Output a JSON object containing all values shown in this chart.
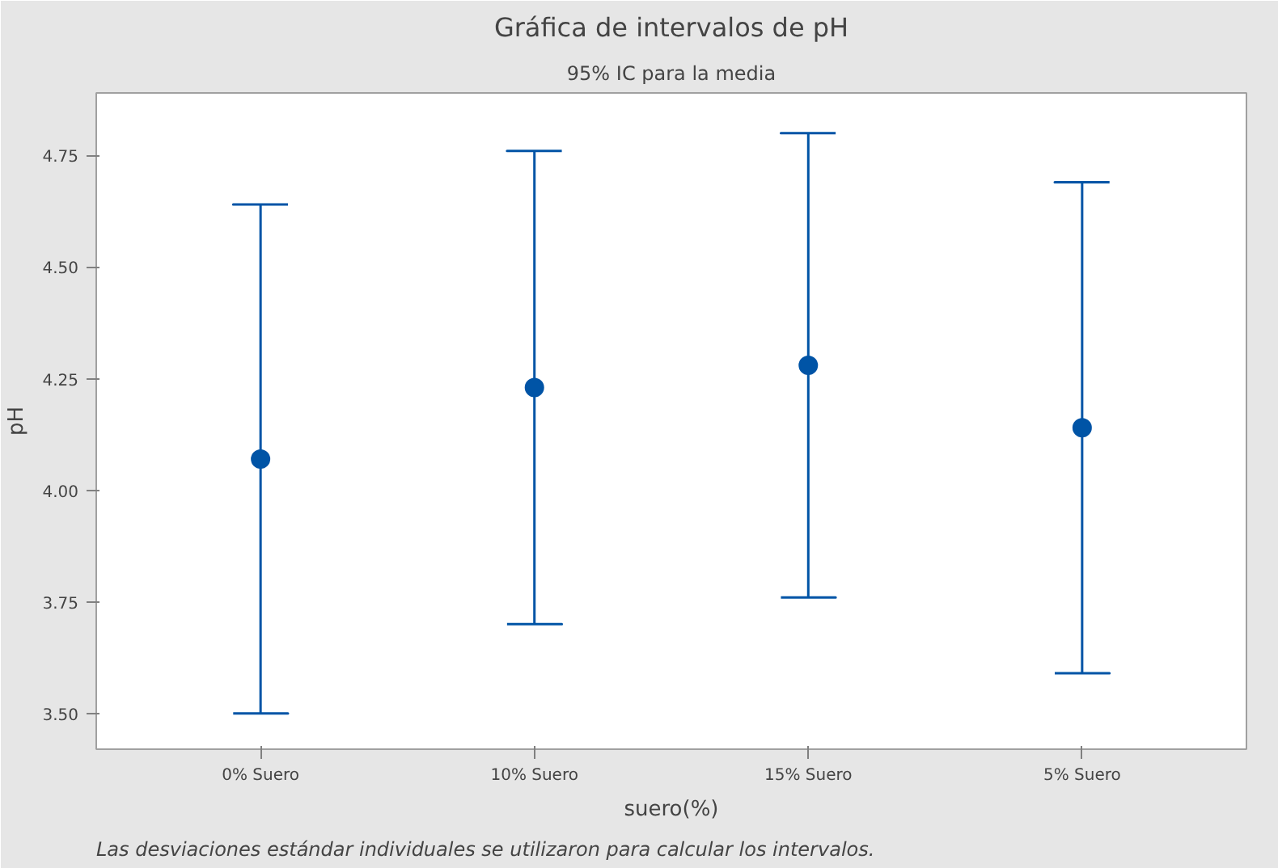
{
  "chart_data": {
    "type": "scatter",
    "title": "Gráfica de intervalos de pH",
    "subtitle": "95% IC para la media",
    "xlabel": "suero(%)",
    "ylabel": "pH",
    "categories": [
      "0% Suero",
      "10% Suero",
      "15% Suero",
      "5% Suero"
    ],
    "color": "#0054a6",
    "values": [
      4.07,
      4.23,
      4.28,
      4.14
    ],
    "errors": [
      0.57,
      0.53,
      0.52,
      0.55
    ],
    "ylim": [
      3.42,
      4.89
    ],
    "yticks": [
      {
        "value": 3.5,
        "label": "3.50"
      },
      {
        "value": 3.75,
        "label": "3.75"
      },
      {
        "value": 4.0,
        "label": "4.00"
      },
      {
        "value": 4.25,
        "label": "4.25"
      },
      {
        "value": 4.5,
        "label": "4.50"
      },
      {
        "value": 4.75,
        "label": "4.75"
      }
    ],
    "grid": false,
    "marker": "circle",
    "annotations": [
      "Las desviaciones estándar individuales se utilizaron para calcular los intervalos."
    ]
  }
}
